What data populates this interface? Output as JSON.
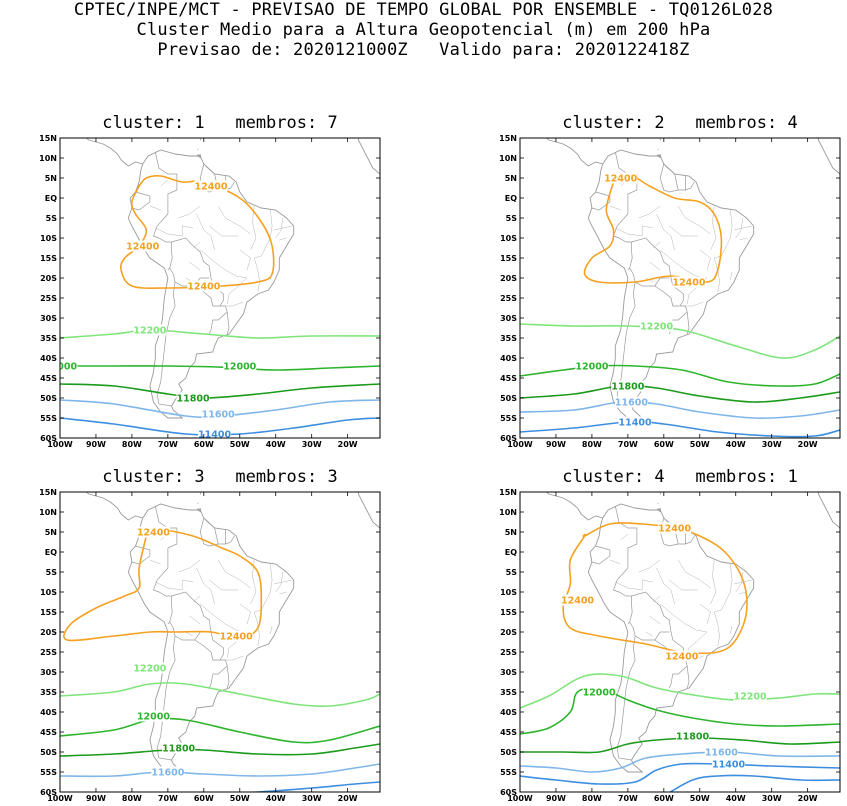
{
  "header": {
    "line1": "CPTEC/INPE/MCT - PREVISAO DE TEMPO GLOBAL POR ENSEMBLE - TQ0126L028",
    "line2": "Cluster Medio para a Altura Geopotencial (m) em 200 hPa",
    "line3": "Previsao de: 2020121000Z   Valido para: 2020122418Z"
  },
  "axes": {
    "lat_labels": [
      "15N",
      "10N",
      "5N",
      "EQ",
      "5S",
      "10S",
      "15S",
      "20S",
      "25S",
      "30S",
      "35S",
      "40S",
      "45S",
      "50S",
      "55S",
      "60S"
    ],
    "lon_labels": [
      "100W",
      "90W",
      "80W",
      "70W",
      "60W",
      "50W",
      "40W",
      "30W",
      "20W"
    ]
  },
  "contour_colors": {
    "12400": "#f5a11f",
    "12200": "#7fe57a",
    "12000": "#2cb52c",
    "11800": "#1b9a1b",
    "11600": "#7fb6ea",
    "11400": "#3d8ee0"
  },
  "panels": [
    {
      "title": "cluster: 1   membros: 7",
      "labels": [
        {
          "text": "12400",
          "lon": -58,
          "lat": 3,
          "color": "#f5a11f"
        },
        {
          "text": "12400",
          "lon": -77,
          "lat": -12,
          "color": "#f5a11f"
        },
        {
          "text": "12400",
          "lon": -60,
          "lat": -22,
          "color": "#f5a11f"
        },
        {
          "text": "12200",
          "lon": -75,
          "lat": -33,
          "color": "#7fe57a"
        },
        {
          "text": "000",
          "lon": -98,
          "lat": -42,
          "color": "#2cb52c"
        },
        {
          "text": "12000",
          "lon": -50,
          "lat": -42,
          "color": "#2cb52c"
        },
        {
          "text": "11800",
          "lon": -63,
          "lat": -50,
          "color": "#1b9a1b"
        },
        {
          "text": "11600",
          "lon": -56,
          "lat": -54,
          "color": "#7fb6ea"
        },
        {
          "text": "11400",
          "lon": -57,
          "lat": -59,
          "color": "#3d8ee0"
        }
      ]
    },
    {
      "title": "cluster: 2   membros: 4",
      "labels": [
        {
          "text": "12400",
          "lon": -72,
          "lat": 5,
          "color": "#f5a11f"
        },
        {
          "text": "12400",
          "lon": -53,
          "lat": -21,
          "color": "#f5a11f"
        },
        {
          "text": "12200",
          "lon": -62,
          "lat": -32,
          "color": "#7fe57a"
        },
        {
          "text": "12000",
          "lon": -80,
          "lat": -42,
          "color": "#2cb52c"
        },
        {
          "text": "11800",
          "lon": -70,
          "lat": -47,
          "color": "#1b9a1b"
        },
        {
          "text": "11600",
          "lon": -69,
          "lat": -51,
          "color": "#7fb6ea"
        },
        {
          "text": "11400",
          "lon": -68,
          "lat": -56,
          "color": "#3d8ee0"
        }
      ]
    },
    {
      "title": "cluster: 3   membros: 3",
      "labels": [
        {
          "text": "12400",
          "lon": -74,
          "lat": 5,
          "color": "#f5a11f"
        },
        {
          "text": "12400",
          "lon": -51,
          "lat": -21,
          "color": "#f5a11f"
        },
        {
          "text": "12200",
          "lon": -75,
          "lat": -29,
          "color": "#7fe57a"
        },
        {
          "text": "12000",
          "lon": -74,
          "lat": -41,
          "color": "#2cb52c"
        },
        {
          "text": "11800",
          "lon": -67,
          "lat": -49,
          "color": "#1b9a1b"
        },
        {
          "text": "11600",
          "lon": -70,
          "lat": -55,
          "color": "#7fb6ea"
        }
      ]
    },
    {
      "title": "cluster: 4   membros: 1",
      "labels": [
        {
          "text": "12400",
          "lon": -57,
          "lat": 6,
          "color": "#f5a11f"
        },
        {
          "text": "12400",
          "lon": -84,
          "lat": -12,
          "color": "#f5a11f"
        },
        {
          "text": "12400",
          "lon": -55,
          "lat": -26,
          "color": "#f5a11f"
        },
        {
          "text": "12200",
          "lon": -36,
          "lat": -36,
          "color": "#7fe57a"
        },
        {
          "text": "12000",
          "lon": -78,
          "lat": -35,
          "color": "#2cb52c"
        },
        {
          "text": "11800",
          "lon": -52,
          "lat": -46,
          "color": "#1b9a1b"
        },
        {
          "text": "11600",
          "lon": -44,
          "lat": -50,
          "color": "#7fb6ea"
        },
        {
          "text": "11400",
          "lon": -42,
          "lat": -53,
          "color": "#3d8ee0"
        }
      ]
    }
  ]
}
